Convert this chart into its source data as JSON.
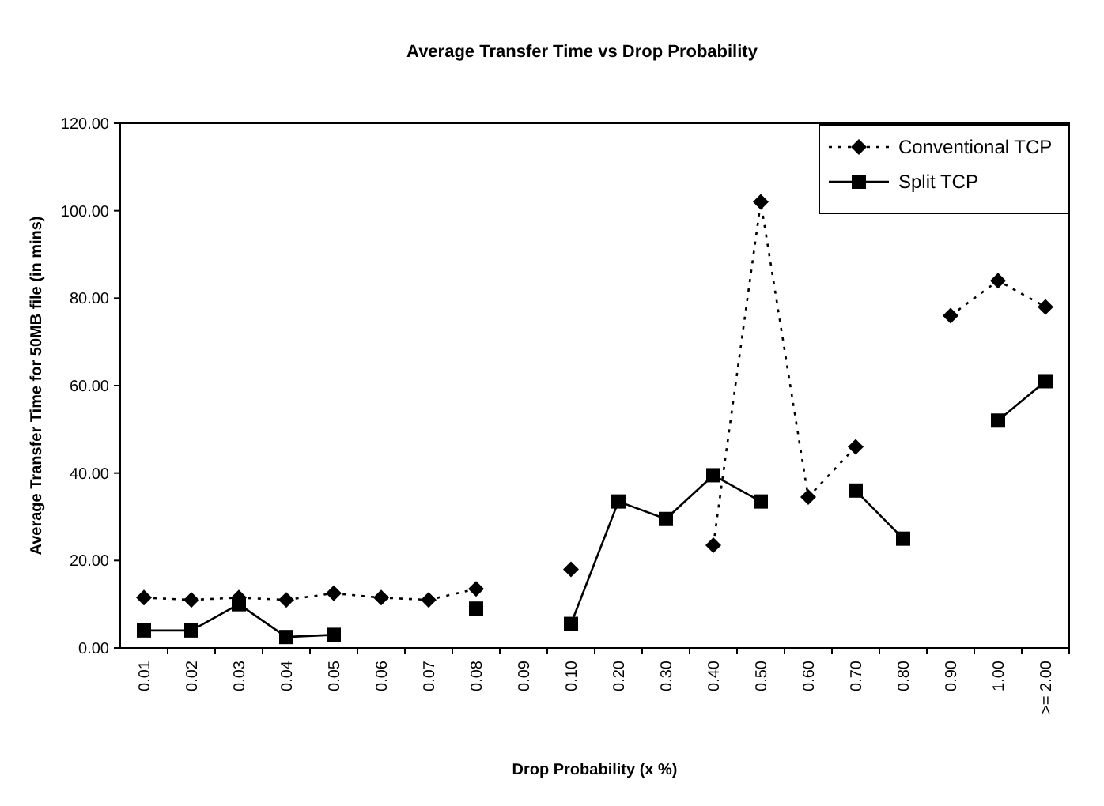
{
  "chart_data": {
    "type": "line",
    "title": "Average Transfer Time vs Drop Probability",
    "xlabel": "Drop Probability (x %)",
    "ylabel": "Average Transfer Time for 50MB file (in mins)",
    "categories": [
      "0.01",
      "0.02",
      "0.03",
      "0.04",
      "0.05",
      "0.06",
      "0.07",
      "0.08",
      "0.09",
      "0.10",
      "0.20",
      "0.30",
      "0.40",
      "0.50",
      "0.60",
      "0.70",
      "0.80",
      "0.90",
      "1.00",
      ">= 2.00"
    ],
    "series": [
      {
        "name": "Conventional TCP",
        "color": "#000000",
        "line_style": "dotted",
        "marker": "diamond",
        "values": [
          11.5,
          11,
          11.5,
          11,
          12.5,
          11.5,
          11,
          13.5,
          null,
          18,
          null,
          null,
          23.5,
          102,
          34.5,
          46,
          null,
          76,
          84,
          78
        ]
      },
      {
        "name": "Split TCP",
        "color": "#000000",
        "line_style": "solid",
        "marker": "square",
        "values": [
          4,
          4,
          10,
          2.5,
          3,
          null,
          null,
          9,
          null,
          5.5,
          33.5,
          29.5,
          39.5,
          33.5,
          null,
          36,
          25,
          null,
          52,
          61
        ]
      }
    ],
    "ylim": [
      0,
      120
    ],
    "yticks": [
      {
        "value": 0,
        "label": "0.00"
      },
      {
        "value": 20,
        "label": "20.00"
      },
      {
        "value": 40,
        "label": "40.00"
      },
      {
        "value": 60,
        "label": "60.00"
      },
      {
        "value": 80,
        "label": "80.00"
      },
      {
        "value": 100,
        "label": "100.00"
      },
      {
        "value": 120,
        "label": "120.00"
      }
    ],
    "grid": false,
    "legend": "top right"
  }
}
